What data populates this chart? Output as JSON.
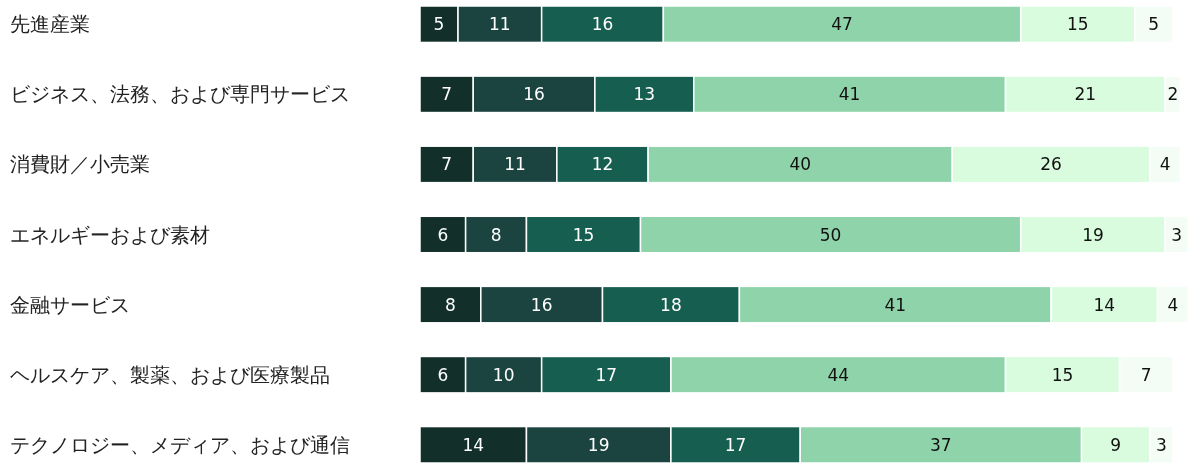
{
  "chart_data": {
    "type": "bar",
    "orientation": "horizontal",
    "stacked": true,
    "data_labels": true,
    "xlim": [
      0,
      101
    ],
    "tick_labels": "y",
    "categories": [
      "先進産業",
      "ビジネス、法務、および専門サービス",
      "消費財／小売業",
      "エネルギーおよび素材",
      "金融サービス",
      "ヘルスケア、製薬、および医療製品",
      "テクノロジー、メディア、および通信"
    ],
    "series": [
      {
        "color": "#123029",
        "values": [
          5,
          7,
          7,
          6,
          8,
          6,
          14
        ]
      },
      {
        "color": "#1b4441",
        "values": [
          11,
          16,
          11,
          8,
          16,
          10,
          19
        ]
      },
      {
        "color": "#165e4f",
        "values": [
          16,
          13,
          12,
          15,
          18,
          17,
          17
        ]
      },
      {
        "color": "#8fd3aa",
        "values": [
          47,
          41,
          40,
          50,
          41,
          44,
          37
        ]
      },
      {
        "color": "#d9fcdf",
        "values": [
          15,
          21,
          26,
          19,
          14,
          15,
          9
        ]
      },
      {
        "color": "#f3fcf5",
        "values": [
          5,
          2,
          4,
          3,
          4,
          7,
          3
        ]
      }
    ]
  }
}
